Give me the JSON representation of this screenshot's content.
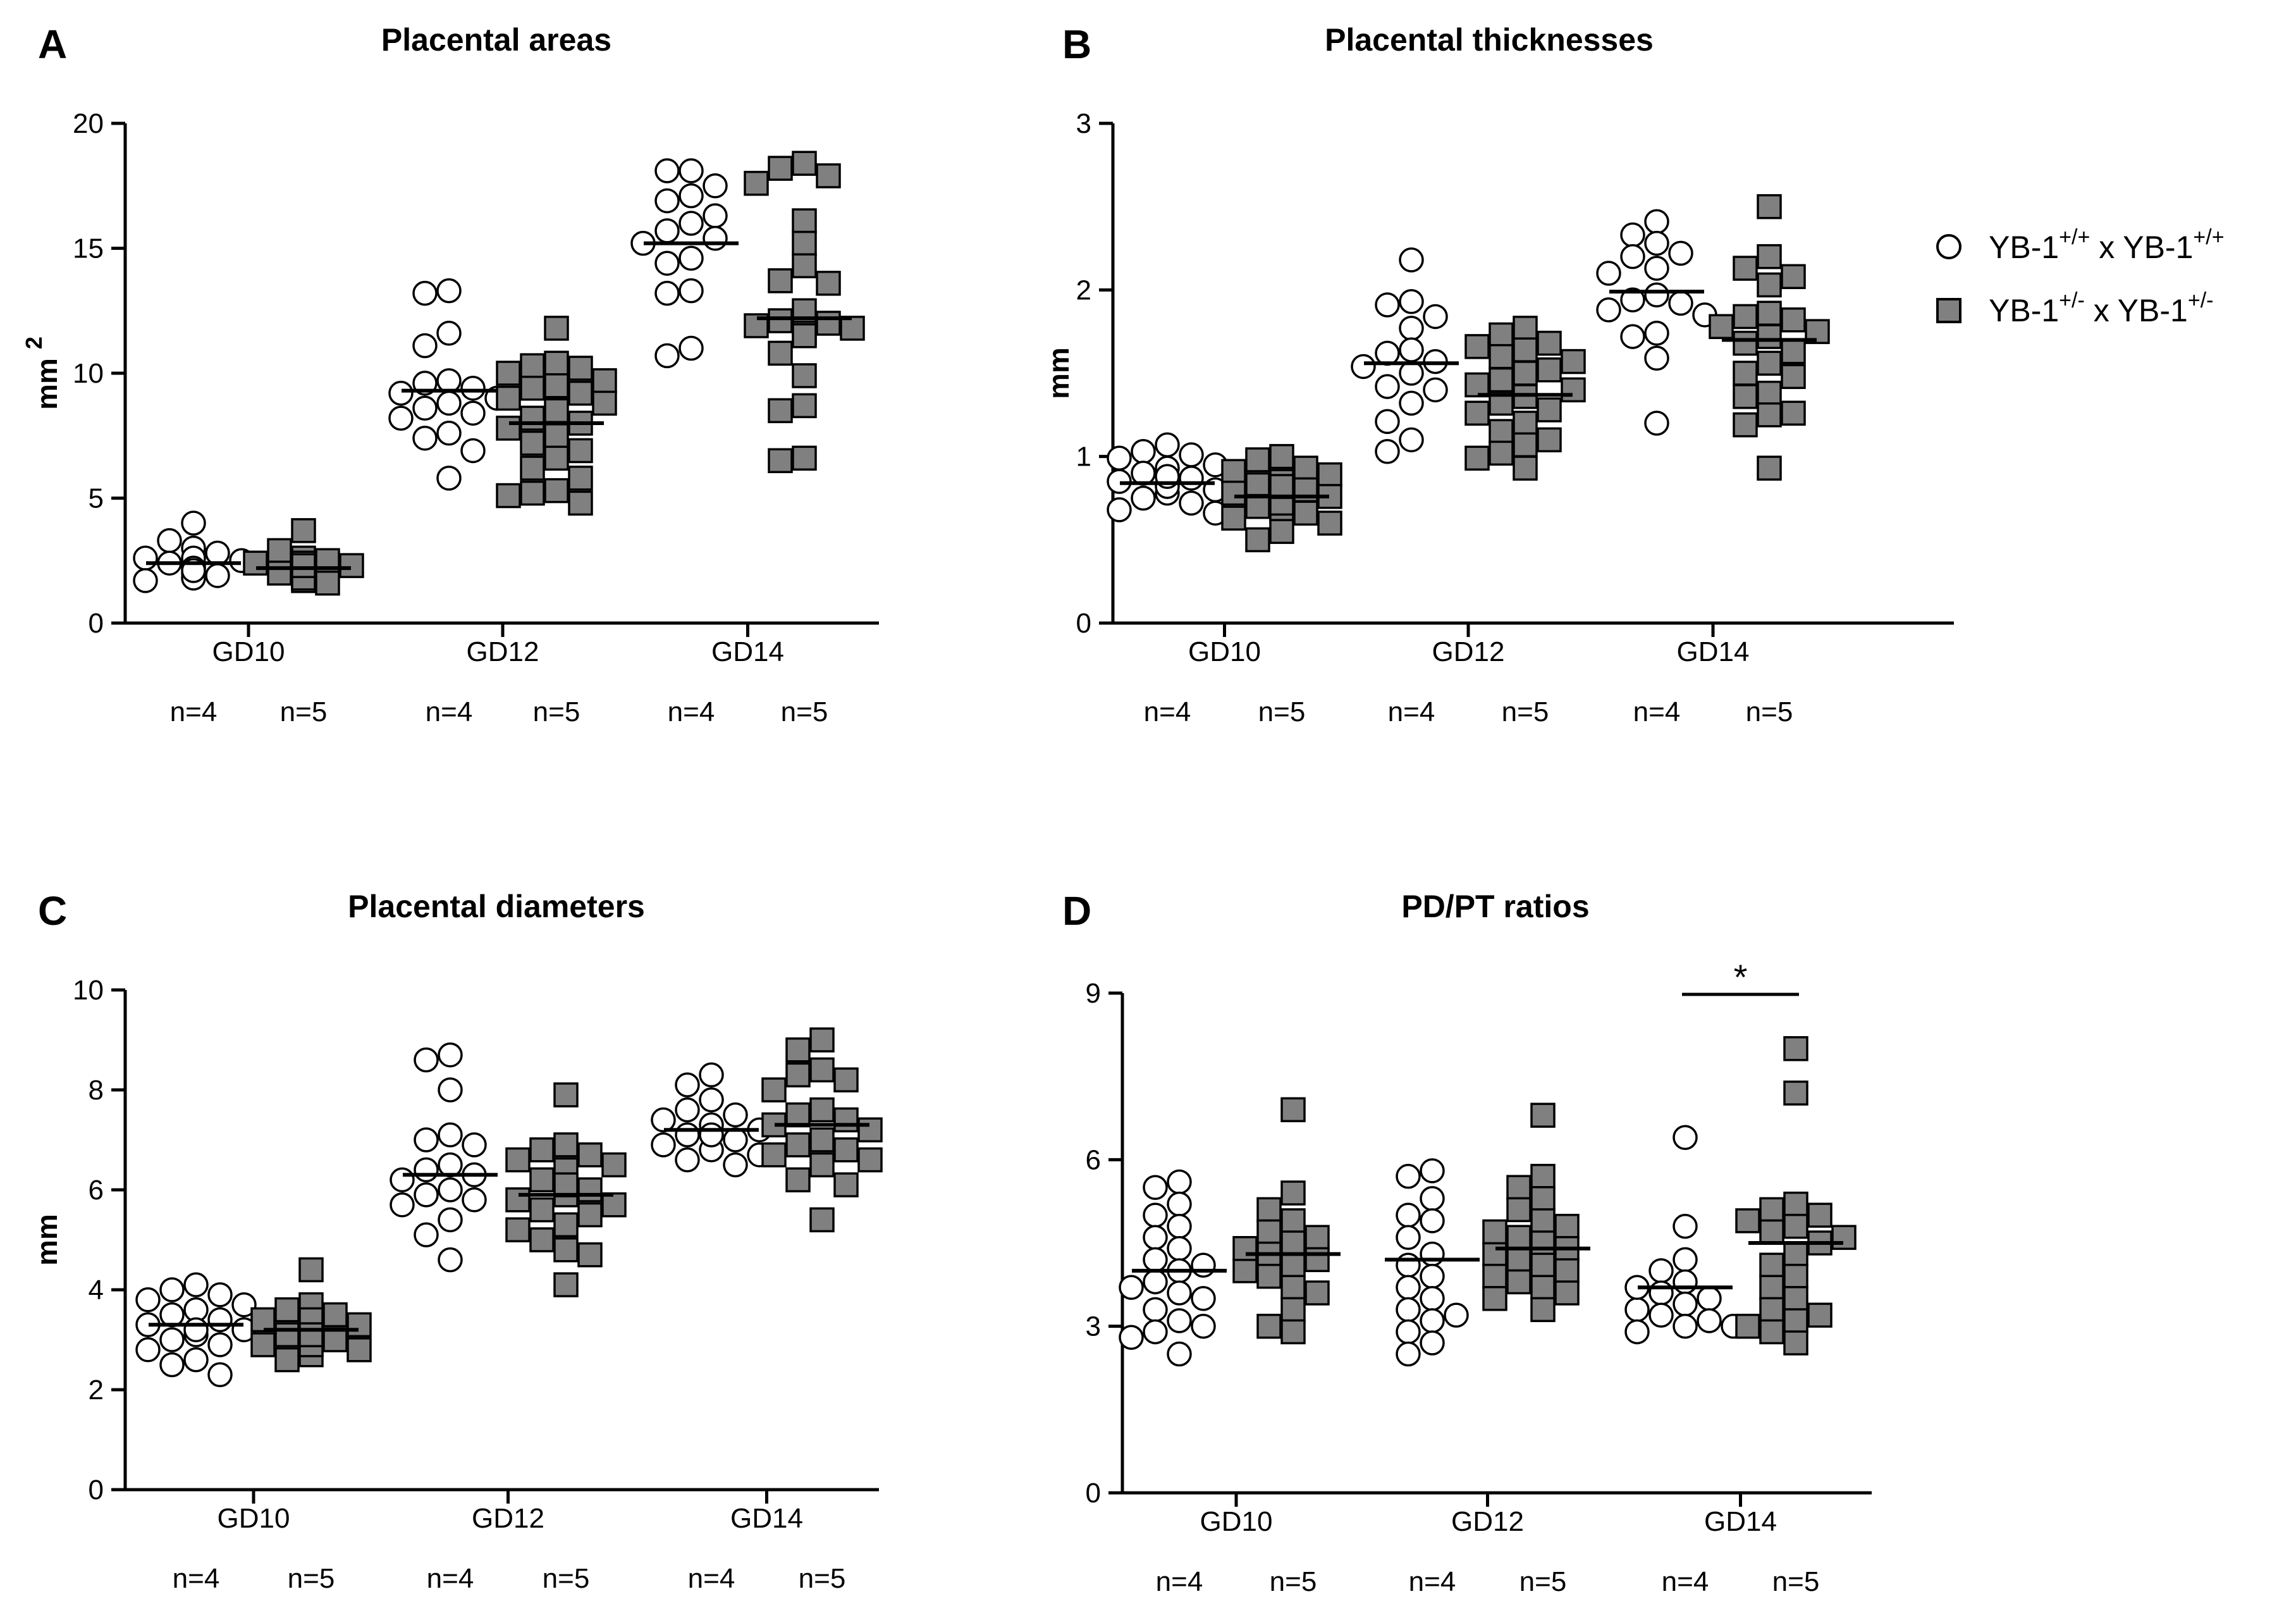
{
  "legend": {
    "entries": [
      {
        "base": "YB-1",
        "sup1": "+/+",
        "mid": " x YB-1",
        "sup2": "+/+",
        "marker": "circle"
      },
      {
        "base": "YB-1",
        "sup1": "+/-",
        "mid": "  x YB-1",
        "sup2": "+/-",
        "marker": "square"
      }
    ]
  },
  "colors": {
    "circle_fill": "#ffffff",
    "square_fill": "#808080",
    "stroke": "#000000"
  },
  "chart_data": [
    {
      "panel": "A",
      "title": "Placental areas",
      "type": "scatter",
      "ylabel": "mm",
      "ylabel_sup": "2",
      "ylim": [
        0,
        20
      ],
      "yticks": [
        0,
        5,
        10,
        15,
        20
      ],
      "categories": [
        "GD10",
        "GD12",
        "GD14"
      ],
      "n_labels": [
        [
          "n=4",
          "n=5"
        ],
        [
          "n=4",
          "n=5"
        ],
        [
          "n=4",
          "n=5"
        ]
      ],
      "series": [
        {
          "name": "YB-1+/+ x YB-1+/+",
          "marker": "circle",
          "means": [
            2.4,
            9.3,
            15.2
          ],
          "points": [
            [
              4.0,
              3.3,
              3.0,
              2.8,
              2.6,
              2.5,
              2.4,
              2.3,
              2.2,
              2.0,
              1.9,
              1.8,
              1.7,
              2.6,
              2.2,
              2.1
            ],
            [
              13.3,
              13.2,
              11.6,
              11.1,
              9.7,
              9.6,
              9.4,
              9.2,
              9.0,
              8.8,
              8.6,
              8.4,
              8.2,
              7.6,
              7.4,
              6.9,
              5.8
            ],
            [
              18.1,
              18.1,
              17.5,
              17.1,
              16.9,
              16.3,
              16.0,
              15.7,
              15.4,
              15.2,
              14.6,
              14.4,
              13.3,
              13.2,
              11.0,
              10.7
            ]
          ]
        },
        {
          "name": "YB-1+/- x YB-1+/-",
          "marker": "square",
          "means": [
            2.2,
            8.0,
            12.2
          ],
          "points": [
            [
              3.7,
              2.9,
              2.6,
              2.5,
              2.4,
              2.3,
              2.2,
              2.1,
              2.0,
              1.9,
              1.8,
              1.7,
              1.6,
              2.2,
              2.0,
              2.4,
              1.9,
              2.1,
              1.8,
              2.3
            ],
            [
              11.8,
              10.4,
              10.3,
              10.2,
              10.0,
              9.7,
              9.5,
              9.4,
              9.2,
              9.0,
              8.8,
              8.5,
              8.2,
              8.0,
              7.8,
              7.5,
              7.2,
              6.9,
              6.6,
              6.2,
              5.8,
              5.3,
              5.2,
              5.1,
              4.8
            ],
            [
              18.4,
              18.2,
              17.9,
              17.6,
              16.1,
              15.2,
              14.3,
              13.7,
              13.6,
              12.5,
              12.1,
              12.0,
              11.9,
              11.8,
              11.6,
              11.5,
              10.8,
              9.9,
              8.7,
              8.5,
              6.6,
              6.5
            ]
          ]
        }
      ]
    },
    {
      "panel": "B",
      "title": "Placental thicknesses",
      "type": "scatter",
      "ylabel": "mm",
      "ylabel_sup": "",
      "ylim": [
        0,
        3
      ],
      "yticks": [
        0,
        1,
        2,
        3
      ],
      "categories": [
        "GD10",
        "GD12",
        "GD14"
      ],
      "n_labels": [
        [
          "n=4",
          "n=5"
        ],
        [
          "n=4",
          "n=5"
        ],
        [
          "n=4",
          "n=5"
        ]
      ],
      "series": [
        {
          "name": "YB-1+/+ x YB-1+/+",
          "marker": "circle",
          "means": [
            0.84,
            1.56,
            1.99
          ],
          "points": [
            [
              1.07,
              1.03,
              1.01,
              0.99,
              0.95,
              0.93,
              0.9,
              0.87,
              0.85,
              0.83,
              0.8,
              0.78,
              0.75,
              0.72,
              0.68,
              0.66,
              0.82,
              0.88
            ],
            [
              2.18,
              1.93,
              1.91,
              1.84,
              1.77,
              1.64,
              1.62,
              1.57,
              1.54,
              1.5,
              1.42,
              1.4,
              1.32,
              1.21,
              1.1,
              1.03
            ],
            [
              2.41,
              2.33,
              2.28,
              2.22,
              2.2,
              2.13,
              2.1,
              1.97,
              1.94,
              1.92,
              1.88,
              1.85,
              1.74,
              1.72,
              1.59,
              1.2
            ]
          ]
        },
        {
          "name": "YB-1+/- x YB-1+/-",
          "marker": "square",
          "means": [
            0.76,
            1.37,
            1.7
          ],
          "points": [
            [
              1.0,
              0.98,
              0.93,
              0.91,
              0.89,
              0.85,
              0.83,
              0.8,
              0.78,
              0.76,
              0.74,
              0.7,
              0.68,
              0.66,
              0.63,
              0.6,
              0.55,
              0.5,
              0.72,
              0.82
            ],
            [
              1.77,
              1.73,
              1.68,
              1.66,
              1.64,
              1.6,
              1.57,
              1.52,
              1.5,
              1.46,
              1.43,
              1.4,
              1.36,
              1.32,
              1.28,
              1.26,
              1.2,
              1.15,
              1.1,
              1.07,
              1.02,
              0.99,
              0.93
            ],
            [
              2.5,
              2.2,
              2.13,
              2.08,
              2.03,
              1.86,
              1.84,
              1.82,
              1.78,
              1.75,
              1.72,
              1.68,
              1.63,
              1.56,
              1.5,
              1.48,
              1.38,
              1.36,
              1.26,
              1.25,
              1.19,
              0.93
            ]
          ]
        }
      ]
    },
    {
      "panel": "C",
      "title": "Placental diameters",
      "type": "scatter",
      "ylabel": "mm",
      "ylabel_sup": "",
      "ylim": [
        0,
        10
      ],
      "yticks": [
        0,
        2,
        4,
        6,
        8,
        10
      ],
      "categories": [
        "GD10",
        "GD12",
        "GD14"
      ],
      "n_labels": [
        [
          "n=4",
          "n=5"
        ],
        [
          "n=4",
          "n=5"
        ],
        [
          "n=4",
          "n=5"
        ]
      ],
      "series": [
        {
          "name": "YB-1+/+ x YB-1+/+",
          "marker": "circle",
          "means": [
            3.3,
            6.3,
            7.2
          ],
          "points": [
            [
              4.1,
              4.0,
              3.9,
              3.8,
              3.6,
              3.5,
              3.4,
              3.3,
              3.2,
              3.1,
              3.0,
              2.9,
              2.8,
              2.6,
              2.5,
              2.3,
              3.7,
              3.2
            ],
            [
              8.7,
              8.6,
              8.0,
              7.1,
              7.0,
              6.9,
              6.5,
              6.4,
              6.3,
              6.2,
              6.0,
              5.9,
              5.8,
              5.7,
              5.4,
              5.1,
              4.6
            ],
            [
              8.3,
              8.1,
              7.8,
              7.6,
              7.5,
              7.4,
              7.3,
              7.2,
              7.1,
              7.0,
              6.9,
              6.8,
              6.7,
              6.6,
              6.5,
              7.1
            ]
          ]
        },
        {
          "name": "YB-1+/- x YB-1+/-",
          "marker": "square",
          "means": [
            3.2,
            5.9,
            7.3
          ],
          "points": [
            [
              4.4,
              3.7,
              3.6,
              3.5,
              3.4,
              3.3,
              3.2,
              3.1,
              3.0,
              2.9,
              2.8,
              2.7,
              2.6,
              3.3,
              3.0,
              3.4,
              2.9,
              3.1
            ],
            [
              7.9,
              6.9,
              6.8,
              6.7,
              6.6,
              6.5,
              6.4,
              6.2,
              6.0,
              5.9,
              5.8,
              5.6,
              5.5,
              5.3,
              5.2,
              5.0,
              4.8,
              4.7,
              4.1,
              6.1,
              5.7
            ],
            [
              9.0,
              8.8,
              8.4,
              8.3,
              8.2,
              8.0,
              7.6,
              7.5,
              7.4,
              7.3,
              7.2,
              7.0,
              6.9,
              6.8,
              6.7,
              6.6,
              6.5,
              6.2,
              6.1,
              5.4
            ]
          ]
        }
      ]
    },
    {
      "panel": "D",
      "title": "PD/PT ratios",
      "type": "scatter",
      "ylabel": "",
      "ylabel_sup": "",
      "ylim": [
        0,
        9
      ],
      "yticks": [
        0,
        3,
        6,
        9
      ],
      "categories": [
        "GD10",
        "GD12",
        "GD14"
      ],
      "n_labels": [
        [
          "n=4",
          "n=5"
        ],
        [
          "n=4",
          "n=5"
        ],
        [
          "n=4",
          "n=5"
        ]
      ],
      "annotation": {
        "text": "*",
        "group": 2
      },
      "series": [
        {
          "name": "YB-1+/+ x YB-1+/+",
          "marker": "circle",
          "means": [
            4.0,
            4.2,
            3.7
          ],
          "points": [
            [
              5.6,
              5.5,
              5.2,
              5.0,
              4.8,
              4.6,
              4.4,
              4.2,
              4.0,
              3.8,
              3.6,
              3.5,
              3.3,
              3.1,
              3.0,
              2.9,
              2.8,
              2.5,
              3.7,
              4.1
            ],
            [
              5.8,
              5.7,
              5.3,
              5.0,
              4.9,
              4.6,
              4.3,
              4.1,
              3.9,
              3.7,
              3.5,
              3.3,
              3.1,
              2.9,
              2.7,
              2.5,
              3.2
            ],
            [
              6.4,
              4.8,
              4.2,
              4.0,
              3.8,
              3.6,
              3.5,
              3.4,
              3.3,
              3.2,
              3.1,
              3.0,
              2.9,
              3.7,
              3.0
            ]
          ]
        },
        {
          "name": "YB-1+/- x YB-1+/-",
          "marker": "square",
          "means": [
            4.3,
            4.4,
            4.5
          ],
          "points": [
            [
              6.9,
              5.4,
              5.1,
              4.9,
              4.7,
              4.6,
              4.5,
              4.3,
              4.2,
              4.1,
              4.0,
              3.9,
              3.7,
              3.6,
              3.3,
              3.0,
              2.9,
              4.4
            ],
            [
              6.8,
              5.7,
              5.5,
              5.3,
              5.1,
              4.9,
              4.8,
              4.6,
              4.5,
              4.4,
              4.3,
              4.2,
              4.1,
              4.0,
              3.9,
              3.8,
              3.7,
              3.6,
              3.5,
              3.3,
              4.7
            ],
            [
              8.0,
              7.2,
              5.2,
              5.1,
              5.0,
              4.9,
              4.8,
              4.7,
              4.5,
              4.3,
              4.1,
              3.9,
              3.7,
              3.5,
              3.3,
              3.2,
              3.1,
              3.0,
              2.9,
              2.7,
              4.6
            ]
          ]
        }
      ]
    }
  ]
}
